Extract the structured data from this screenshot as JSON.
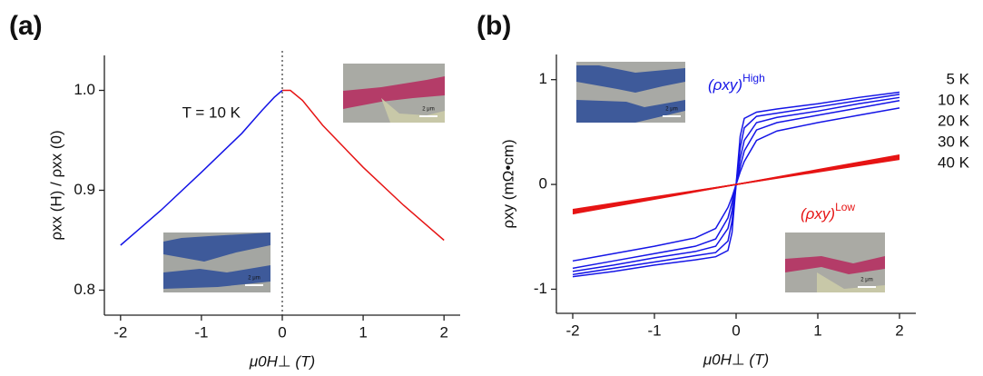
{
  "chart_data": [
    {
      "type": "line",
      "panel_label": "(a)",
      "xlabel": "μ0H⊥ (T)",
      "ylabel": "ρxx (H) / ρxx (0)",
      "annotation": "T = 10 K",
      "scale_label": "2 μm",
      "xlim": [
        -2.2,
        2.2
      ],
      "xticks": [
        -2,
        -1,
        0,
        1,
        2
      ],
      "ylim": [
        0.775,
        1.035
      ],
      "yticks": [
        0.8,
        0.9,
        {
          "value": 1,
          "label": "1.0"
        }
      ],
      "series": [
        {
          "color": "#1414e6",
          "x": [
            -2,
            -1.5,
            -1,
            -0.5,
            -0.25,
            -0.1,
            0
          ],
          "values": [
            0.845,
            0.88,
            0.918,
            0.957,
            0.98,
            0.993,
            1.0
          ]
        },
        {
          "color": "#e61414",
          "x": [
            0,
            0.05,
            0.1,
            0.25,
            0.5,
            1,
            1.5,
            2
          ],
          "values": [
            1.0,
            1.0,
            1.0,
            0.99,
            0.965,
            0.923,
            0.885,
            0.85
          ]
        }
      ]
    },
    {
      "type": "line",
      "panel_label": "(b)",
      "xlabel": "μ0H⊥ (T)",
      "ylabel": "ρxy (mΩ•cm)",
      "high_label": {
        "text": "(ρxy)",
        "sup": "High",
        "color": "#1414e6"
      },
      "low_label": {
        "text": "(ρxy)",
        "sup": "Low",
        "color": "#e61414"
      },
      "scale_label": "2 μm",
      "xlim": [
        -2.2,
        2.2
      ],
      "xticks": [
        -2,
        -1,
        0,
        1,
        2
      ],
      "ylim": [
        -1.23,
        1.24
      ],
      "yticks": [
        -1,
        0,
        1
      ],
      "series": [
        {
          "name": "5 K",
          "color": "#1414e6",
          "x": [
            -2,
            -1.5,
            -1,
            -0.5,
            -0.25,
            -0.1,
            -0.05,
            0,
            0.05,
            0.1,
            0.25,
            0.5,
            1,
            1.5,
            2
          ],
          "values": [
            -0.88,
            -0.83,
            -0.77,
            -0.72,
            -0.69,
            -0.63,
            -0.46,
            0,
            0.46,
            0.63,
            0.69,
            0.72,
            0.77,
            0.83,
            0.88
          ]
        },
        {
          "name": "10 K",
          "color": "#1414e6",
          "x": [
            -2,
            -1.5,
            -1,
            -0.5,
            -0.25,
            -0.1,
            -0.05,
            0,
            0.05,
            0.1,
            0.25,
            0.5,
            1,
            1.5,
            2
          ],
          "values": [
            -0.86,
            -0.8,
            -0.74,
            -0.68,
            -0.65,
            -0.54,
            -0.35,
            0,
            0.35,
            0.54,
            0.65,
            0.68,
            0.74,
            0.8,
            0.86
          ]
        },
        {
          "name": "20 K",
          "color": "#1414e6",
          "x": [
            -2,
            -1.5,
            -1,
            -0.5,
            -0.25,
            -0.1,
            -0.05,
            0,
            0.05,
            0.1,
            0.25,
            0.5,
            1,
            1.5,
            2
          ],
          "values": [
            -0.83,
            -0.77,
            -0.7,
            -0.64,
            -0.59,
            -0.42,
            -0.25,
            0,
            0.25,
            0.42,
            0.59,
            0.64,
            0.7,
            0.77,
            0.83
          ]
        },
        {
          "name": "30 K",
          "color": "#1414e6",
          "x": [
            -2,
            -1.5,
            -1,
            -0.5,
            -0.25,
            -0.1,
            -0.05,
            0,
            0.05,
            0.1,
            0.25,
            0.5,
            1,
            1.5,
            2
          ],
          "values": [
            -0.8,
            -0.73,
            -0.66,
            -0.59,
            -0.52,
            -0.32,
            -0.17,
            0,
            0.17,
            0.32,
            0.52,
            0.59,
            0.66,
            0.73,
            0.8
          ]
        },
        {
          "name": "40 K",
          "color": "#1414e6",
          "x": [
            -2,
            -1.5,
            -1,
            -0.5,
            -0.25,
            -0.1,
            -0.05,
            0,
            0.05,
            0.1,
            0.25,
            0.5,
            1,
            1.5,
            2
          ],
          "values": [
            -0.73,
            -0.66,
            -0.59,
            -0.51,
            -0.42,
            -0.22,
            -0.12,
            0,
            0.12,
            0.22,
            0.42,
            0.51,
            0.59,
            0.66,
            0.73
          ]
        },
        {
          "color": "#e61414",
          "x": [
            -2,
            -1,
            0,
            1,
            2
          ],
          "values": [
            -0.28,
            -0.14,
            0,
            0.14,
            0.28
          ]
        },
        {
          "color": "#e61414",
          "x": [
            -2,
            -1,
            0,
            1,
            2
          ],
          "values": [
            -0.27,
            -0.135,
            0,
            0.135,
            0.27
          ]
        },
        {
          "color": "#e61414",
          "x": [
            -2,
            -1,
            0,
            1,
            2
          ],
          "values": [
            -0.26,
            -0.13,
            0,
            0.13,
            0.26
          ]
        },
        {
          "color": "#e61414",
          "x": [
            -2,
            -1,
            0,
            1,
            2
          ],
          "values": [
            -0.25,
            -0.125,
            0,
            0.125,
            0.25
          ]
        },
        {
          "color": "#e61414",
          "x": [
            -2,
            -1,
            0,
            1,
            2
          ],
          "values": [
            -0.24,
            -0.12,
            0,
            0.12,
            0.24
          ]
        }
      ]
    }
  ]
}
